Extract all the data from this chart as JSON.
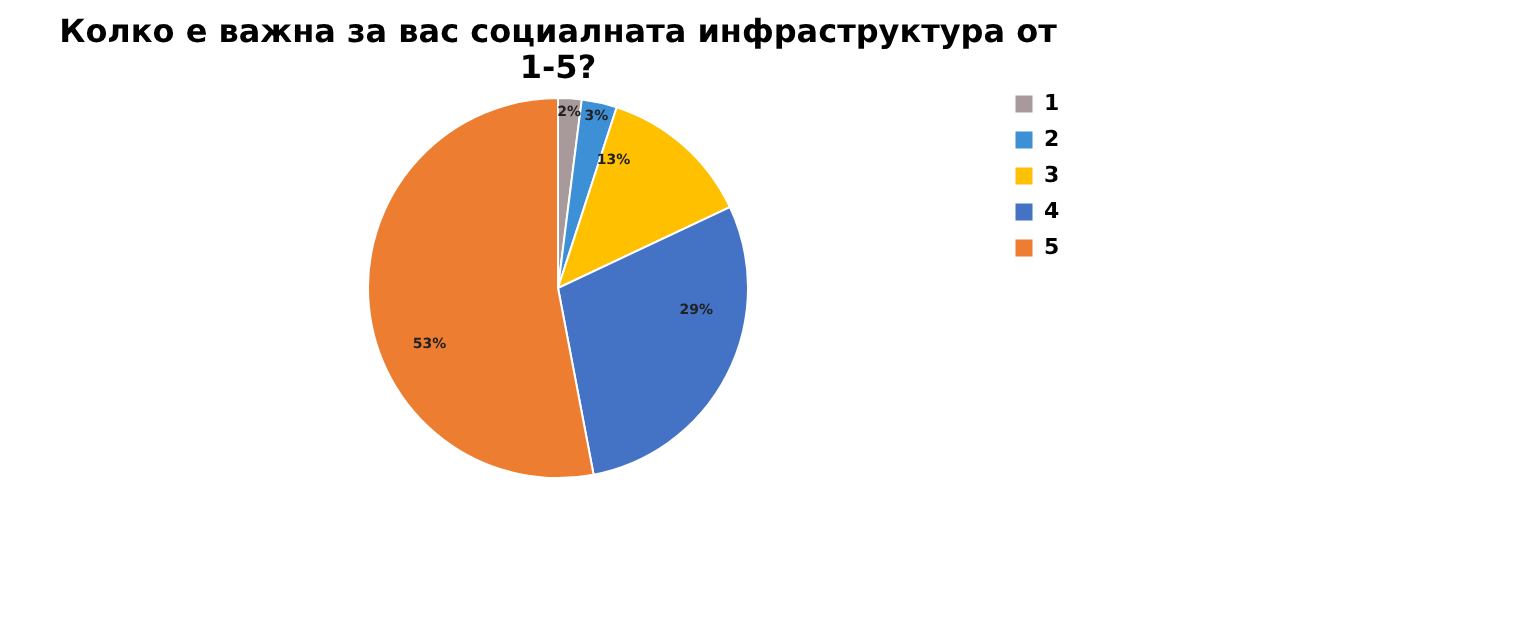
{
  "chart_data": {
    "type": "pie",
    "title": "Колко е важна за вас социалната инфраструктура от 1-5?",
    "categories": [
      "1",
      "2",
      "3",
      "4",
      "5"
    ],
    "values": [
      2,
      3,
      13,
      29,
      53
    ],
    "value_labels": [
      "2%",
      "3%",
      "13%",
      "29%",
      "53%"
    ],
    "colors": [
      "#a89a9a",
      "#3d8fd6",
      "#ffc000",
      "#4472c4",
      "#ed7d31"
    ],
    "legend": "right"
  }
}
